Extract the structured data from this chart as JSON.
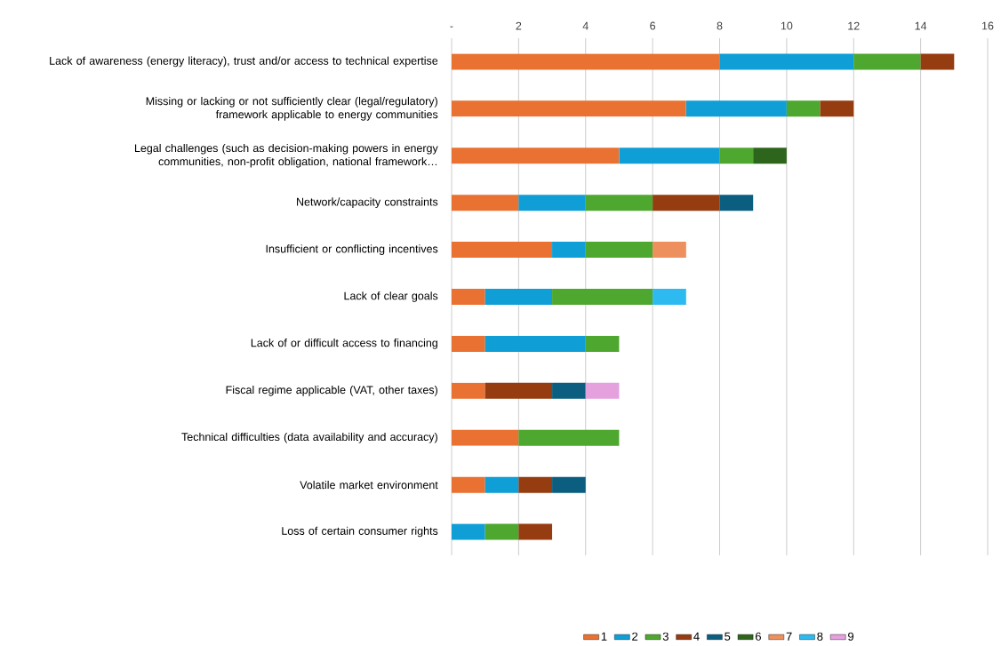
{
  "chart_data": {
    "type": "bar",
    "orientation": "horizontal",
    "stacked": true,
    "categories": [
      "Lack of awareness (energy literacy), trust and/or access to technical expertise",
      "Missing or lacking or not sufficiently clear (legal/regulatory) framework applicable to energy communities",
      "Legal challenges (such as decision-making powers in energy communities, non-profit obligation, national framework…",
      "Network/capacity constraints",
      "Insufficient or conflicting incentives",
      "Lack of clear goals",
      "Lack of or difficult access to financing",
      "Fiscal regime applicable (VAT, other taxes)",
      "Technical difficulties (data availability and accuracy)",
      "Volatile market environment",
      "Loss of certain consumer rights"
    ],
    "series": [
      {
        "name": "1",
        "color": "#e97132",
        "values": [
          8,
          7,
          5,
          2,
          3,
          1,
          1,
          1,
          2,
          1,
          null
        ]
      },
      {
        "name": "2",
        "color": "#0f9ed5",
        "values": [
          4,
          3,
          3,
          2,
          1,
          2,
          3,
          null,
          null,
          1,
          1
        ]
      },
      {
        "name": "3",
        "color": "#4ea72e",
        "values": [
          2,
          1,
          1,
          2,
          2,
          3,
          1,
          null,
          3,
          null,
          1
        ]
      },
      {
        "name": "4",
        "color": "#963c11",
        "values": [
          1,
          1,
          null,
          2,
          null,
          null,
          null,
          2,
          null,
          1,
          1
        ]
      },
      {
        "name": "5",
        "color": "#0b5e7f",
        "values": [
          null,
          null,
          null,
          1,
          null,
          null,
          null,
          1,
          null,
          1,
          null
        ]
      },
      {
        "name": "6",
        "color": "#2e651c",
        "values": [
          null,
          null,
          1,
          null,
          null,
          null,
          null,
          null,
          null,
          null,
          null
        ]
      },
      {
        "name": "7",
        "color": "#ee8f5e",
        "values": [
          null,
          null,
          null,
          null,
          1,
          null,
          null,
          null,
          null,
          null,
          null
        ]
      },
      {
        "name": "8",
        "color": "#2dbaf0",
        "values": [
          null,
          null,
          null,
          null,
          null,
          1,
          null,
          null,
          null,
          null,
          null
        ]
      },
      {
        "name": "9",
        "color": "#e4a1dd",
        "values": [
          null,
          null,
          null,
          null,
          null,
          null,
          null,
          1,
          null,
          null,
          null
        ]
      }
    ],
    "xlim": [
      0,
      16
    ],
    "xticks": [
      {
        "value": 0,
        "label": "-"
      },
      2,
      4,
      6,
      8,
      10,
      12,
      14,
      16
    ],
    "grid": "x",
    "legend": "bottom"
  }
}
